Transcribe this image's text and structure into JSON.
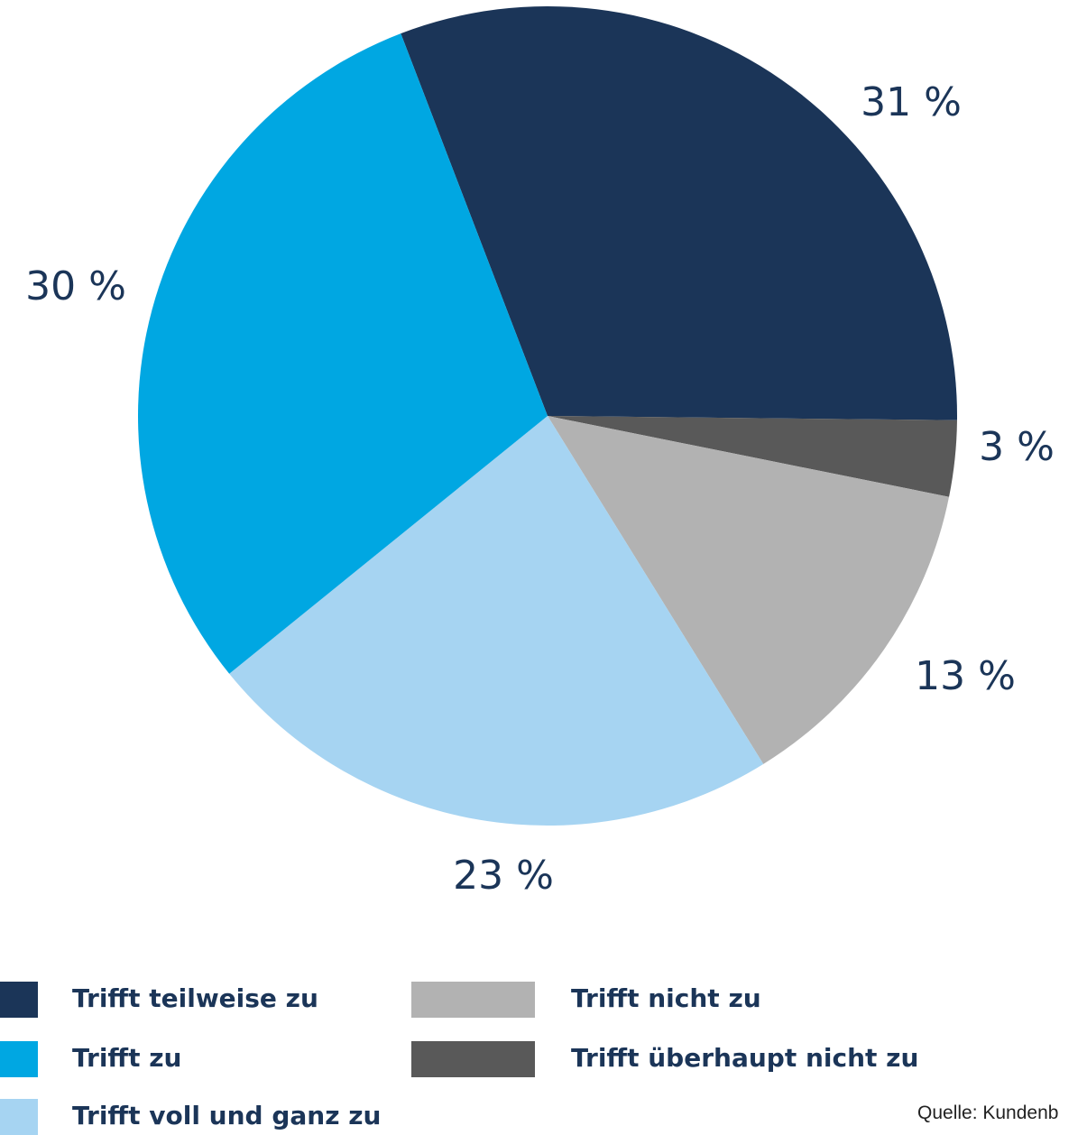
{
  "chart_data": {
    "type": "pie",
    "slices": [
      {
        "label": "Trifft teilweise zu",
        "value": 31,
        "display": "31 %",
        "color": "#1b3558"
      },
      {
        "label": "Trifft überhaupt nicht zu",
        "value": 3,
        "display": "3 %",
        "color": "#595959"
      },
      {
        "label": "Trifft nicht zu",
        "value": 13,
        "display": "13 %",
        "color": "#b2b2b2"
      },
      {
        "label": "Trifft voll und ganz zu",
        "value": 23,
        "display": "23 %",
        "color": "#a6d4f2"
      },
      {
        "label": "Trifft zu",
        "value": 30,
        "display": "30 %",
        "color": "#00a7e2"
      }
    ],
    "legend": [
      {
        "label": "Trifft teilweise zu",
        "color": "#1b3558"
      },
      {
        "label": "Trifft zu",
        "color": "#00a7e2"
      },
      {
        "label": "Trifft voll und ganz zu",
        "color": "#a6d4f2"
      },
      {
        "label": "Trifft nicht zu",
        "color": "#b2b2b2"
      },
      {
        "label": "Trifft überhaupt nicht zu",
        "color": "#595959"
      }
    ],
    "legend_placement": "bottom"
  },
  "source": "Quelle: Kundenb"
}
